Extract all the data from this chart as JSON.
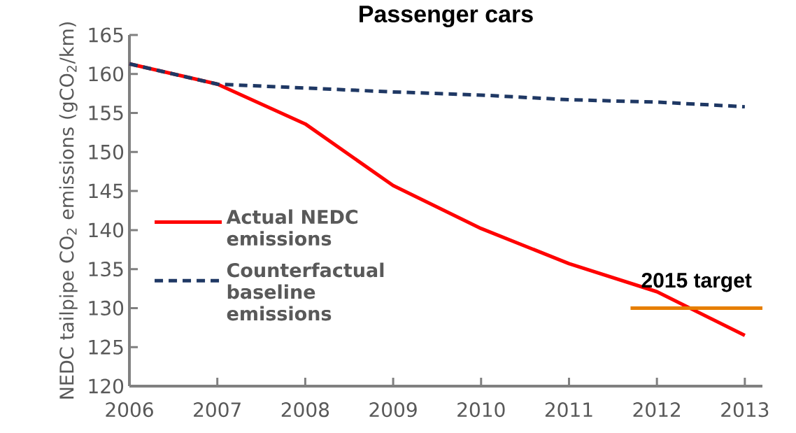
{
  "chart_data": {
    "type": "line",
    "title": "Passenger cars",
    "ylabel": "NEDC tailpipe CO$_{2}$ emissions (gCO$_{2}$/km)",
    "x": [
      2006,
      2007,
      2008,
      2009,
      2010,
      2011,
      2012,
      2013
    ],
    "xlim": [
      2006,
      2013.2
    ],
    "xticks": [
      2006,
      2007,
      2008,
      2009,
      2010,
      2011,
      2012,
      2013
    ],
    "ylim": [
      120,
      165
    ],
    "yticks": [
      120,
      125,
      130,
      135,
      140,
      145,
      150,
      155,
      160,
      165
    ],
    "series": [
      {
        "name": "Actual NEDC emissions",
        "color": "#ff0000",
        "line_style": "solid",
        "values": [
          161.3,
          158.7,
          153.6,
          145.7,
          140.2,
          135.7,
          132.1,
          126.5
        ]
      },
      {
        "name": "Counterfactual baseline emissions",
        "color": "#1f3864",
        "line_style": "dashed",
        "values": [
          161.3,
          158.7,
          158.2,
          157.7,
          157.3,
          156.7,
          156.4,
          155.8
        ]
      },
      {
        "color": "#e67e00",
        "line_style": "solid",
        "x": [
          2011.7,
          2013.2
        ],
        "values": [
          130,
          130
        ]
      }
    ],
    "annotations": [
      {
        "text": "2015 target",
        "x": 2012.45,
        "y": 130
      }
    ],
    "legend": "left",
    "grid": false,
    "marker": "none"
  }
}
